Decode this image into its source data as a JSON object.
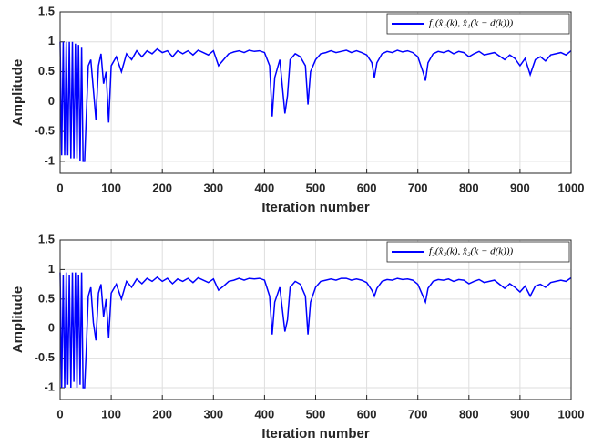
{
  "chart_data": [
    {
      "type": "line",
      "x_label": "Iteration number",
      "y_label": "Amplitude",
      "grid": true,
      "legend_position": "upper right",
      "xlim": [
        0,
        1000
      ],
      "xticks": [
        0,
        100,
        200,
        300,
        400,
        500,
        600,
        700,
        800,
        900,
        1000
      ],
      "ylim": [
        -1.2,
        1.5
      ],
      "yticks": [
        -1,
        -0.5,
        0,
        0.5,
        1,
        1.5
      ],
      "x": [
        0,
        3,
        6,
        9,
        12,
        15,
        18,
        21,
        24,
        27,
        30,
        33,
        36,
        39,
        42,
        45,
        48,
        51,
        55,
        60,
        65,
        70,
        75,
        80,
        85,
        90,
        95,
        100,
        110,
        120,
        130,
        140,
        150,
        160,
        170,
        180,
        190,
        200,
        210,
        220,
        230,
        240,
        250,
        260,
        270,
        280,
        290,
        300,
        310,
        320,
        330,
        340,
        350,
        360,
        370,
        380,
        390,
        400,
        410,
        415,
        420,
        430,
        440,
        445,
        450,
        460,
        470,
        480,
        485,
        490,
        500,
        510,
        520,
        530,
        540,
        550,
        560,
        570,
        580,
        590,
        600,
        610,
        615,
        620,
        630,
        640,
        650,
        660,
        670,
        680,
        690,
        700,
        710,
        715,
        720,
        730,
        740,
        750,
        760,
        770,
        780,
        790,
        800,
        810,
        820,
        830,
        840,
        850,
        860,
        870,
        880,
        890,
        900,
        910,
        920,
        930,
        940,
        950,
        960,
        970,
        980,
        990,
        1000
      ],
      "series": [
        {
          "name": "f₁(x̂₁(k), x̂₁(k − d(k)))",
          "color": "#0000ff",
          "values": [
            1,
            -0.9,
            1,
            -0.9,
            1,
            -0.9,
            1,
            -0.95,
            1,
            -0.95,
            0.97,
            -0.95,
            0.95,
            -1,
            0.9,
            -1,
            -1,
            -0.3,
            0.6,
            0.7,
            0.2,
            -0.3,
            0.6,
            0.8,
            0.3,
            0.5,
            -0.35,
            0.6,
            0.75,
            0.5,
            0.8,
            0.7,
            0.85,
            0.75,
            0.85,
            0.8,
            0.88,
            0.82,
            0.85,
            0.75,
            0.85,
            0.8,
            0.85,
            0.78,
            0.86,
            0.82,
            0.78,
            0.85,
            0.6,
            0.7,
            0.8,
            0.83,
            0.85,
            0.82,
            0.86,
            0.84,
            0.85,
            0.82,
            0.6,
            -0.25,
            0.4,
            0.7,
            -0.2,
            0.1,
            0.7,
            0.8,
            0.75,
            0.6,
            -0.05,
            0.5,
            0.7,
            0.8,
            0.82,
            0.85,
            0.82,
            0.84,
            0.86,
            0.82,
            0.85,
            0.82,
            0.78,
            0.65,
            0.4,
            0.65,
            0.8,
            0.84,
            0.82,
            0.86,
            0.83,
            0.85,
            0.82,
            0.75,
            0.5,
            0.35,
            0.65,
            0.8,
            0.84,
            0.82,
            0.85,
            0.8,
            0.84,
            0.82,
            0.75,
            0.8,
            0.84,
            0.78,
            0.8,
            0.82,
            0.76,
            0.7,
            0.78,
            0.72,
            0.6,
            0.72,
            0.45,
            0.7,
            0.75,
            0.68,
            0.78,
            0.8,
            0.82,
            0.78,
            0.85
          ]
        }
      ]
    },
    {
      "type": "line",
      "x_label": "Iteration number",
      "y_label": "Amplitude",
      "grid": true,
      "legend_position": "upper right",
      "xlim": [
        0,
        1000
      ],
      "xticks": [
        0,
        100,
        200,
        300,
        400,
        500,
        600,
        700,
        800,
        900,
        1000
      ],
      "ylim": [
        -1.2,
        1.5
      ],
      "yticks": [
        -1,
        -0.5,
        0,
        0.5,
        1,
        1.5
      ],
      "x": [
        0,
        3,
        6,
        9,
        12,
        15,
        18,
        21,
        24,
        27,
        30,
        33,
        36,
        39,
        42,
        45,
        48,
        51,
        55,
        60,
        65,
        70,
        75,
        80,
        85,
        90,
        95,
        100,
        110,
        120,
        130,
        140,
        150,
        160,
        170,
        180,
        190,
        200,
        210,
        220,
        230,
        240,
        250,
        260,
        270,
        280,
        290,
        300,
        310,
        320,
        330,
        340,
        350,
        360,
        370,
        380,
        390,
        400,
        410,
        415,
        420,
        430,
        440,
        445,
        450,
        460,
        470,
        480,
        485,
        490,
        500,
        510,
        520,
        530,
        540,
        550,
        560,
        570,
        580,
        590,
        600,
        610,
        615,
        620,
        630,
        640,
        650,
        660,
        670,
        680,
        690,
        700,
        710,
        715,
        720,
        730,
        740,
        750,
        760,
        770,
        780,
        790,
        800,
        810,
        820,
        830,
        840,
        850,
        860,
        870,
        880,
        890,
        900,
        910,
        920,
        930,
        940,
        950,
        960,
        970,
        980,
        990,
        1000
      ],
      "series": [
        {
          "name": "f₂(x̂₂(k), x̂₂(k − d(k)))",
          "color": "#0000ff",
          "values": [
            0.95,
            -1,
            0.9,
            -1,
            0.95,
            -0.95,
            0.9,
            -1,
            0.95,
            -0.9,
            0.95,
            -1,
            0.9,
            -0.95,
            0.95,
            -1,
            -1,
            -0.4,
            0.55,
            0.7,
            0.1,
            -0.2,
            0.6,
            0.75,
            0.2,
            0.5,
            -0.15,
            0.6,
            0.75,
            0.5,
            0.8,
            0.7,
            0.84,
            0.76,
            0.85,
            0.8,
            0.87,
            0.8,
            0.85,
            0.76,
            0.84,
            0.8,
            0.85,
            0.78,
            0.86,
            0.82,
            0.78,
            0.84,
            0.65,
            0.72,
            0.8,
            0.82,
            0.85,
            0.82,
            0.85,
            0.84,
            0.85,
            0.82,
            0.55,
            -0.1,
            0.45,
            0.7,
            -0.05,
            0.15,
            0.7,
            0.8,
            0.75,
            0.55,
            -0.1,
            0.45,
            0.7,
            0.8,
            0.82,
            0.84,
            0.82,
            0.85,
            0.85,
            0.82,
            0.84,
            0.82,
            0.78,
            0.65,
            0.55,
            0.68,
            0.8,
            0.83,
            0.82,
            0.85,
            0.83,
            0.84,
            0.82,
            0.75,
            0.55,
            0.45,
            0.68,
            0.8,
            0.83,
            0.82,
            0.84,
            0.8,
            0.83,
            0.82,
            0.76,
            0.8,
            0.83,
            0.78,
            0.8,
            0.82,
            0.75,
            0.68,
            0.76,
            0.7,
            0.62,
            0.72,
            0.55,
            0.72,
            0.75,
            0.7,
            0.78,
            0.8,
            0.82,
            0.8,
            0.86
          ]
        }
      ]
    }
  ]
}
